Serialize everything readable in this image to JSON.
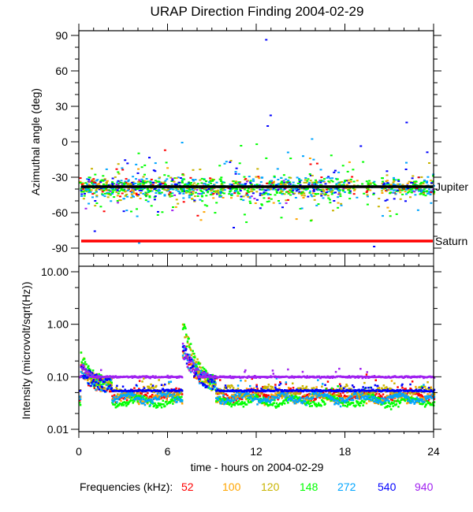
{
  "chart_data": [
    {
      "type": "scatter",
      "title": "URAP Direction Finding  2004-02-29",
      "xlabel": "",
      "ylabel": "Azimuthal angle (deg)",
      "xlim": [
        0,
        24
      ],
      "ylim": [
        -90,
        90
      ],
      "yticks": [
        "90",
        "60",
        "30",
        "0",
        "-30",
        "-60",
        "-90"
      ],
      "ytick_values": [
        90,
        60,
        30,
        0,
        -30,
        -60,
        -90
      ],
      "reference_lines": [
        {
          "label": "Jupiter",
          "value": -38,
          "color": "#000000"
        },
        {
          "label": "Saturn",
          "value": -84,
          "color": "#ff0000"
        }
      ],
      "cluster": {
        "center": -38,
        "spread": 8,
        "note_values_range": [
          -90,
          90
        ]
      },
      "outliers": [
        {
          "x": 12.6,
          "y": 87,
          "series": "540"
        },
        {
          "x": 12.9,
          "y": 23,
          "series": "540"
        },
        {
          "x": 12.7,
          "y": 14,
          "series": "540"
        },
        {
          "x": 22.1,
          "y": 17,
          "series": "540"
        },
        {
          "x": 15.7,
          "y": 3,
          "series": "272"
        },
        {
          "x": 19.0,
          "y": -3,
          "series": "540"
        },
        {
          "x": 4.0,
          "y": -85,
          "series": "272"
        },
        {
          "x": 19.9,
          "y": -88,
          "series": "540"
        },
        {
          "x": 1.0,
          "y": -75,
          "series": "540"
        },
        {
          "x": 10.4,
          "y": -72,
          "series": "540"
        }
      ]
    },
    {
      "type": "scatter",
      "xlabel": "time - hours on 2004-02-29",
      "ylabel": "Intensity (microvolt/sqrt(Hz))",
      "xlim": [
        0,
        24
      ],
      "ylim": [
        0.01,
        10.0
      ],
      "yscale": "log",
      "xticks": [
        "0",
        "6",
        "12",
        "18",
        "24"
      ],
      "xtick_values": [
        0,
        6,
        12,
        18,
        24
      ],
      "yticks": [
        "10.00",
        "1.00",
        "0.10",
        "0.01"
      ],
      "ytick_values": [
        10,
        1,
        0.1,
        0.01
      ],
      "series": [
        {
          "name": "52",
          "color": "#ff0000",
          "baseline": 0.04
        },
        {
          "name": "100",
          "color": "#ffa500",
          "baseline": 0.035
        },
        {
          "name": "120",
          "color": "#c8b400",
          "baseline": 0.045
        },
        {
          "name": "148",
          "color": "#00ff00",
          "baseline": 0.03
        },
        {
          "name": "272",
          "color": "#00a5ff",
          "baseline": 0.035
        },
        {
          "name": "540",
          "color": "#0000ff",
          "baseline": 0.053
        },
        {
          "name": "940",
          "color": "#a020f0",
          "baseline": 0.1
        }
      ],
      "events": [
        {
          "x": 0.1,
          "peak": 0.3
        },
        {
          "x": 7.0,
          "peak": 1.15
        }
      ]
    }
  ],
  "legend": {
    "label": "Frequencies (kHz):",
    "entries": [
      {
        "text": "52",
        "color": "#ff0000"
      },
      {
        "text": "100",
        "color": "#ffa500"
      },
      {
        "text": "120",
        "color": "#c8b400"
      },
      {
        "text": "148",
        "color": "#00ff00"
      },
      {
        "text": "272",
        "color": "#00a5ff"
      },
      {
        "text": "540",
        "color": "#0000ff"
      },
      {
        "text": "940",
        "color": "#a020f0"
      }
    ]
  }
}
